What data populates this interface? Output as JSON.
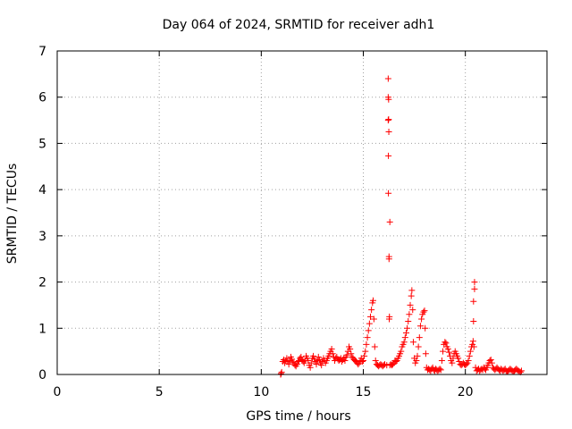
{
  "chart_data": {
    "type": "scatter",
    "title": "Day 064 of 2024, SRMTID for receiver adh1",
    "xlabel": "GPS time / hours",
    "ylabel": "SRMTID / TECUs",
    "xlim": [
      0,
      24
    ],
    "ylim": [
      0,
      7
    ],
    "xticks": [
      0,
      5,
      10,
      15,
      20
    ],
    "yticks": [
      0,
      1,
      2,
      3,
      4,
      5,
      6,
      7
    ],
    "grid": true,
    "marker": "+",
    "color": "#ff0000",
    "series": [
      {
        "name": "SRMTID",
        "points": [
          [
            10.95,
            0.0
          ],
          [
            10.97,
            0.02
          ],
          [
            11.0,
            0.05
          ],
          [
            11.05,
            0.28
          ],
          [
            11.1,
            0.32
          ],
          [
            11.15,
            0.25
          ],
          [
            11.2,
            0.3
          ],
          [
            11.25,
            0.35
          ],
          [
            11.3,
            0.28
          ],
          [
            11.35,
            0.22
          ],
          [
            11.4,
            0.3
          ],
          [
            11.45,
            0.38
          ],
          [
            11.5,
            0.33
          ],
          [
            11.55,
            0.27
          ],
          [
            11.6,
            0.25
          ],
          [
            11.65,
            0.2
          ],
          [
            11.7,
            0.18
          ],
          [
            11.75,
            0.22
          ],
          [
            11.8,
            0.28
          ],
          [
            11.85,
            0.3
          ],
          [
            11.9,
            0.35
          ],
          [
            11.95,
            0.38
          ],
          [
            12.0,
            0.32
          ],
          [
            12.05,
            0.28
          ],
          [
            12.1,
            0.25
          ],
          [
            12.15,
            0.3
          ],
          [
            12.2,
            0.4
          ],
          [
            12.25,
            0.35
          ],
          [
            12.3,
            0.3
          ],
          [
            12.35,
            0.2
          ],
          [
            12.4,
            0.15
          ],
          [
            12.45,
            0.25
          ],
          [
            12.5,
            0.35
          ],
          [
            12.55,
            0.4
          ],
          [
            12.6,
            0.33
          ],
          [
            12.65,
            0.28
          ],
          [
            12.7,
            0.22
          ],
          [
            12.75,
            0.3
          ],
          [
            12.8,
            0.38
          ],
          [
            12.85,
            0.32
          ],
          [
            12.9,
            0.25
          ],
          [
            12.95,
            0.2
          ],
          [
            13.0,
            0.28
          ],
          [
            13.05,
            0.35
          ],
          [
            13.1,
            0.3
          ],
          [
            13.15,
            0.25
          ],
          [
            13.2,
            0.3
          ],
          [
            13.25,
            0.35
          ],
          [
            13.3,
            0.4
          ],
          [
            13.35,
            0.45
          ],
          [
            13.4,
            0.5
          ],
          [
            13.45,
            0.55
          ],
          [
            13.5,
            0.45
          ],
          [
            13.55,
            0.38
          ],
          [
            13.6,
            0.3
          ],
          [
            13.65,
            0.35
          ],
          [
            13.7,
            0.38
          ],
          [
            13.75,
            0.33
          ],
          [
            13.8,
            0.3
          ],
          [
            13.85,
            0.32
          ],
          [
            13.9,
            0.35
          ],
          [
            13.95,
            0.28
          ],
          [
            14.0,
            0.32
          ],
          [
            14.05,
            0.36
          ],
          [
            14.1,
            0.3
          ],
          [
            14.15,
            0.38
          ],
          [
            14.2,
            0.42
          ],
          [
            14.25,
            0.5
          ],
          [
            14.3,
            0.6
          ],
          [
            14.35,
            0.55
          ],
          [
            14.4,
            0.45
          ],
          [
            14.45,
            0.38
          ],
          [
            14.5,
            0.35
          ],
          [
            14.55,
            0.32
          ],
          [
            14.6,
            0.3
          ],
          [
            14.65,
            0.28
          ],
          [
            14.7,
            0.25
          ],
          [
            14.75,
            0.22
          ],
          [
            14.8,
            0.25
          ],
          [
            14.85,
            0.3
          ],
          [
            14.9,
            0.35
          ],
          [
            14.95,
            0.28
          ],
          [
            15.0,
            0.3
          ],
          [
            15.05,
            0.4
          ],
          [
            15.1,
            0.5
          ],
          [
            15.15,
            0.65
          ],
          [
            15.2,
            0.8
          ],
          [
            15.25,
            0.95
          ],
          [
            15.3,
            1.1
          ],
          [
            15.35,
            1.25
          ],
          [
            15.4,
            1.4
          ],
          [
            15.45,
            1.55
          ],
          [
            15.48,
            1.6
          ],
          [
            15.52,
            1.2
          ],
          [
            15.56,
            0.6
          ],
          [
            15.6,
            0.3
          ],
          [
            15.65,
            0.22
          ],
          [
            15.7,
            0.2
          ],
          [
            15.75,
            0.18
          ],
          [
            15.8,
            0.2
          ],
          [
            15.85,
            0.22
          ],
          [
            15.9,
            0.2
          ],
          [
            15.95,
            0.18
          ],
          [
            16.0,
            0.2
          ],
          [
            16.05,
            0.22
          ],
          [
            16.15,
            0.2
          ],
          [
            16.22,
            6.4
          ],
          [
            16.22,
            6.0
          ],
          [
            16.24,
            5.95
          ],
          [
            16.22,
            5.5
          ],
          [
            16.24,
            5.52
          ],
          [
            16.25,
            5.25
          ],
          [
            16.23,
            4.73
          ],
          [
            16.23,
            3.92
          ],
          [
            16.3,
            3.3
          ],
          [
            16.26,
            2.55
          ],
          [
            16.26,
            2.5
          ],
          [
            16.28,
            1.25
          ],
          [
            16.27,
            1.2
          ],
          [
            16.3,
            0.2
          ],
          [
            16.35,
            0.22
          ],
          [
            16.4,
            0.2
          ],
          [
            16.45,
            0.22
          ],
          [
            16.5,
            0.25
          ],
          [
            16.55,
            0.3
          ],
          [
            16.6,
            0.28
          ],
          [
            16.65,
            0.3
          ],
          [
            16.7,
            0.35
          ],
          [
            16.75,
            0.4
          ],
          [
            16.8,
            0.45
          ],
          [
            16.85,
            0.5
          ],
          [
            16.9,
            0.6
          ],
          [
            16.95,
            0.65
          ],
          [
            17.0,
            0.7
          ],
          [
            17.05,
            0.8
          ],
          [
            17.1,
            0.9
          ],
          [
            17.15,
            1.0
          ],
          [
            17.2,
            1.15
          ],
          [
            17.25,
            1.3
          ],
          [
            17.3,
            1.5
          ],
          [
            17.35,
            1.7
          ],
          [
            17.38,
            1.82
          ],
          [
            17.42,
            1.4
          ],
          [
            17.45,
            0.7
          ],
          [
            17.5,
            0.35
          ],
          [
            17.55,
            0.25
          ],
          [
            17.6,
            0.3
          ],
          [
            17.65,
            0.4
          ],
          [
            17.7,
            0.6
          ],
          [
            17.75,
            0.8
          ],
          [
            17.8,
            1.05
          ],
          [
            17.85,
            1.2
          ],
          [
            17.9,
            1.3
          ],
          [
            17.95,
            1.35
          ],
          [
            18.0,
            1.38
          ],
          [
            18.03,
            1.0
          ],
          [
            18.06,
            0.45
          ],
          [
            18.1,
            0.15
          ],
          [
            18.15,
            0.1
          ],
          [
            18.2,
            0.12
          ],
          [
            18.25,
            0.1
          ],
          [
            18.3,
            0.08
          ],
          [
            18.35,
            0.12
          ],
          [
            18.4,
            0.15
          ],
          [
            18.45,
            0.1
          ],
          [
            18.5,
            0.08
          ],
          [
            18.55,
            0.12
          ],
          [
            18.6,
            0.1
          ],
          [
            18.65,
            0.08
          ],
          [
            18.7,
            0.1
          ],
          [
            18.75,
            0.12
          ],
          [
            18.8,
            0.1
          ],
          [
            18.85,
            0.3
          ],
          [
            18.9,
            0.5
          ],
          [
            18.95,
            0.65
          ],
          [
            19.0,
            0.7
          ],
          [
            19.05,
            0.68
          ],
          [
            19.1,
            0.6
          ],
          [
            19.15,
            0.55
          ],
          [
            19.2,
            0.48
          ],
          [
            19.25,
            0.4
          ],
          [
            19.3,
            0.3
          ],
          [
            19.35,
            0.25
          ],
          [
            19.4,
            0.35
          ],
          [
            19.45,
            0.45
          ],
          [
            19.5,
            0.5
          ],
          [
            19.55,
            0.45
          ],
          [
            19.6,
            0.4
          ],
          [
            19.65,
            0.35
          ],
          [
            19.7,
            0.28
          ],
          [
            19.75,
            0.22
          ],
          [
            19.8,
            0.2
          ],
          [
            19.85,
            0.22
          ],
          [
            19.9,
            0.25
          ],
          [
            19.95,
            0.22
          ],
          [
            20.0,
            0.2
          ],
          [
            20.05,
            0.22
          ],
          [
            20.1,
            0.25
          ],
          [
            20.15,
            0.3
          ],
          [
            20.2,
            0.4
          ],
          [
            20.25,
            0.5
          ],
          [
            20.3,
            0.6
          ],
          [
            20.35,
            0.65
          ],
          [
            20.38,
            0.72
          ],
          [
            20.45,
            2.0
          ],
          [
            20.45,
            1.85
          ],
          [
            20.4,
            1.58
          ],
          [
            20.4,
            1.15
          ],
          [
            20.42,
            0.6
          ],
          [
            20.5,
            0.15
          ],
          [
            20.55,
            0.08
          ],
          [
            20.6,
            0.1
          ],
          [
            20.65,
            0.12
          ],
          [
            20.7,
            0.08
          ],
          [
            20.75,
            0.1
          ],
          [
            20.8,
            0.12
          ],
          [
            20.85,
            0.1
          ],
          [
            20.9,
            0.15
          ],
          [
            20.95,
            0.12
          ],
          [
            21.0,
            0.1
          ],
          [
            21.05,
            0.15
          ],
          [
            21.1,
            0.2
          ],
          [
            21.15,
            0.25
          ],
          [
            21.2,
            0.3
          ],
          [
            21.25,
            0.32
          ],
          [
            21.3,
            0.25
          ],
          [
            21.35,
            0.15
          ],
          [
            21.4,
            0.12
          ],
          [
            21.45,
            0.1
          ],
          [
            21.5,
            0.12
          ],
          [
            21.55,
            0.15
          ],
          [
            21.6,
            0.12
          ],
          [
            21.65,
            0.1
          ],
          [
            21.7,
            0.08
          ],
          [
            21.75,
            0.12
          ],
          [
            21.8,
            0.1
          ],
          [
            21.85,
            0.08
          ],
          [
            21.9,
            0.1
          ],
          [
            21.95,
            0.12
          ],
          [
            22.0,
            0.08
          ],
          [
            22.05,
            0.06
          ],
          [
            22.1,
            0.08
          ],
          [
            22.15,
            0.1
          ],
          [
            22.2,
            0.12
          ],
          [
            22.25,
            0.1
          ],
          [
            22.3,
            0.08
          ],
          [
            22.35,
            0.06
          ],
          [
            22.4,
            0.08
          ],
          [
            22.45,
            0.1
          ],
          [
            22.5,
            0.12
          ],
          [
            22.55,
            0.1
          ],
          [
            22.6,
            0.08
          ],
          [
            22.65,
            0.06
          ],
          [
            22.7,
            0.05
          ],
          [
            22.75,
            0.08
          ]
        ]
      }
    ]
  }
}
